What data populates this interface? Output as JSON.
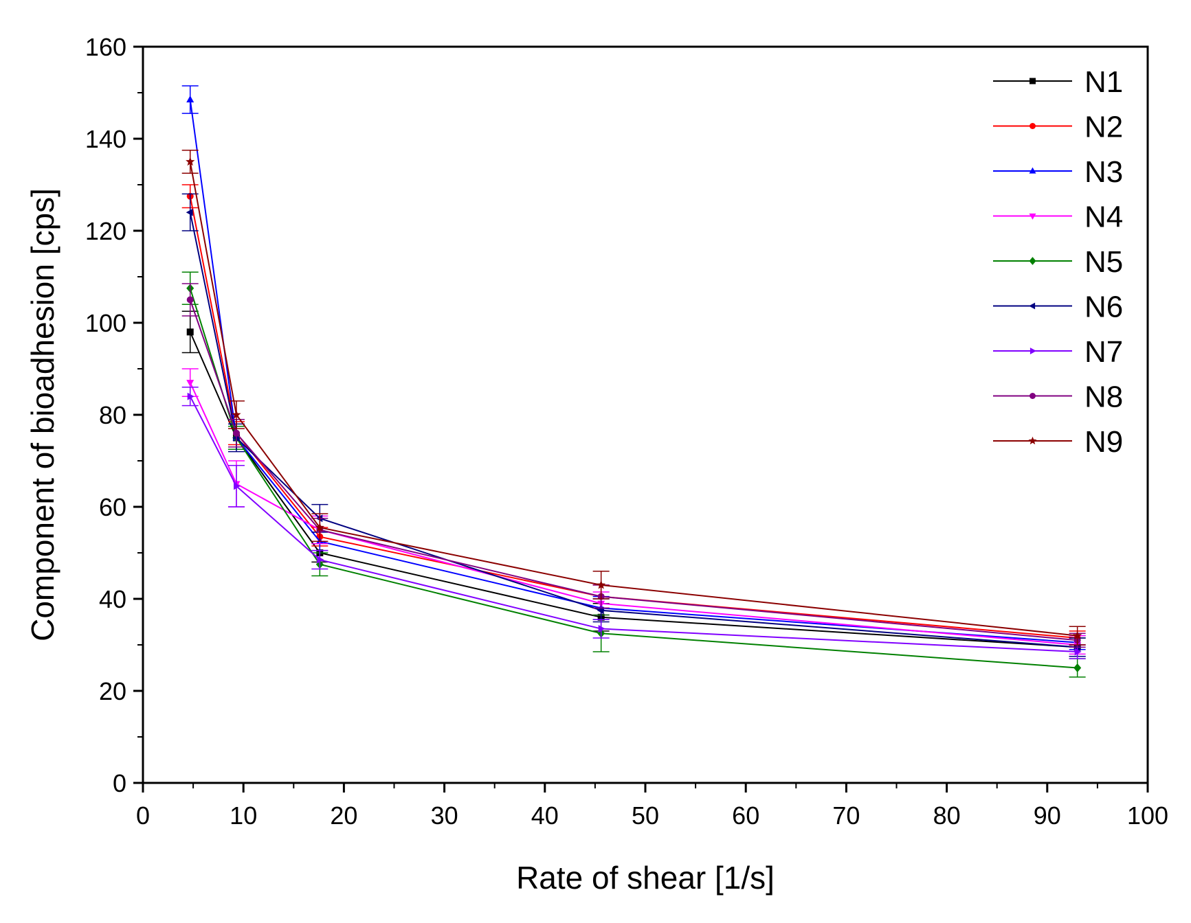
{
  "chart_data": {
    "type": "line",
    "title": "",
    "xlabel": "Rate of shear [1/s]",
    "ylabel": "Component of bioadhesion [cps]",
    "xlim": [
      0,
      100
    ],
    "ylim": [
      0,
      160
    ],
    "x_ticks": [
      0,
      10,
      20,
      30,
      40,
      50,
      60,
      70,
      80,
      90,
      100
    ],
    "y_ticks": [
      0,
      20,
      40,
      60,
      80,
      100,
      120,
      140,
      160
    ],
    "grid": false,
    "legend_position": "top-right",
    "x": [
      4.7,
      9.3,
      17.6,
      45.6,
      93.0
    ],
    "series": [
      {
        "name": "N1",
        "color": "#000000",
        "marker": "square",
        "values": [
          98.0,
          75.0,
          50.0,
          36.0,
          29.5
        ],
        "errors": [
          4.5,
          2.5,
          2.0,
          3.0,
          2.0
        ]
      },
      {
        "name": "N2",
        "color": "#ff0000",
        "marker": "circle",
        "values": [
          127.5,
          76.0,
          53.5,
          40.5,
          31.5
        ],
        "errors": [
          2.5,
          2.5,
          2.0,
          2.5,
          1.5
        ]
      },
      {
        "name": "N3",
        "color": "#0000ff",
        "marker": "triangle-up",
        "values": [
          148.5,
          75.0,
          52.5,
          38.0,
          30.5
        ],
        "errors": [
          3.0,
          2.5,
          2.0,
          2.5,
          1.5
        ]
      },
      {
        "name": "N4",
        "color": "#ff00ff",
        "marker": "triangle-down",
        "values": [
          87.0,
          65.0,
          55.0,
          39.0,
          30.0
        ],
        "errors": [
          3.0,
          5.0,
          3.0,
          2.5,
          2.0
        ]
      },
      {
        "name": "N5",
        "color": "#008000",
        "marker": "diamond",
        "values": [
          107.5,
          75.0,
          47.5,
          32.5,
          25.0
        ],
        "errors": [
          3.5,
          2.5,
          2.5,
          4.0,
          2.0
        ]
      },
      {
        "name": "N6",
        "color": "#000080",
        "marker": "triangle-left",
        "values": [
          124.0,
          75.0,
          57.5,
          37.5,
          29.5
        ],
        "errors": [
          4.0,
          3.0,
          3.0,
          2.5,
          2.0
        ]
      },
      {
        "name": "N7",
        "color": "#8000ff",
        "marker": "triangle-right",
        "values": [
          84.0,
          64.5,
          48.5,
          33.5,
          28.5
        ],
        "errors": [
          2.0,
          4.5,
          2.0,
          2.0,
          1.5
        ]
      },
      {
        "name": "N8",
        "color": "#800080",
        "marker": "circle",
        "values": [
          105.0,
          76.0,
          55.0,
          40.5,
          31.0
        ],
        "errors": [
          3.5,
          3.0,
          2.5,
          2.5,
          1.5
        ]
      },
      {
        "name": "N9",
        "color": "#8b0000",
        "marker": "star",
        "values": [
          135.0,
          80.0,
          55.5,
          43.0,
          32.0
        ],
        "errors": [
          2.5,
          3.0,
          3.0,
          3.0,
          2.0
        ]
      }
    ]
  }
}
